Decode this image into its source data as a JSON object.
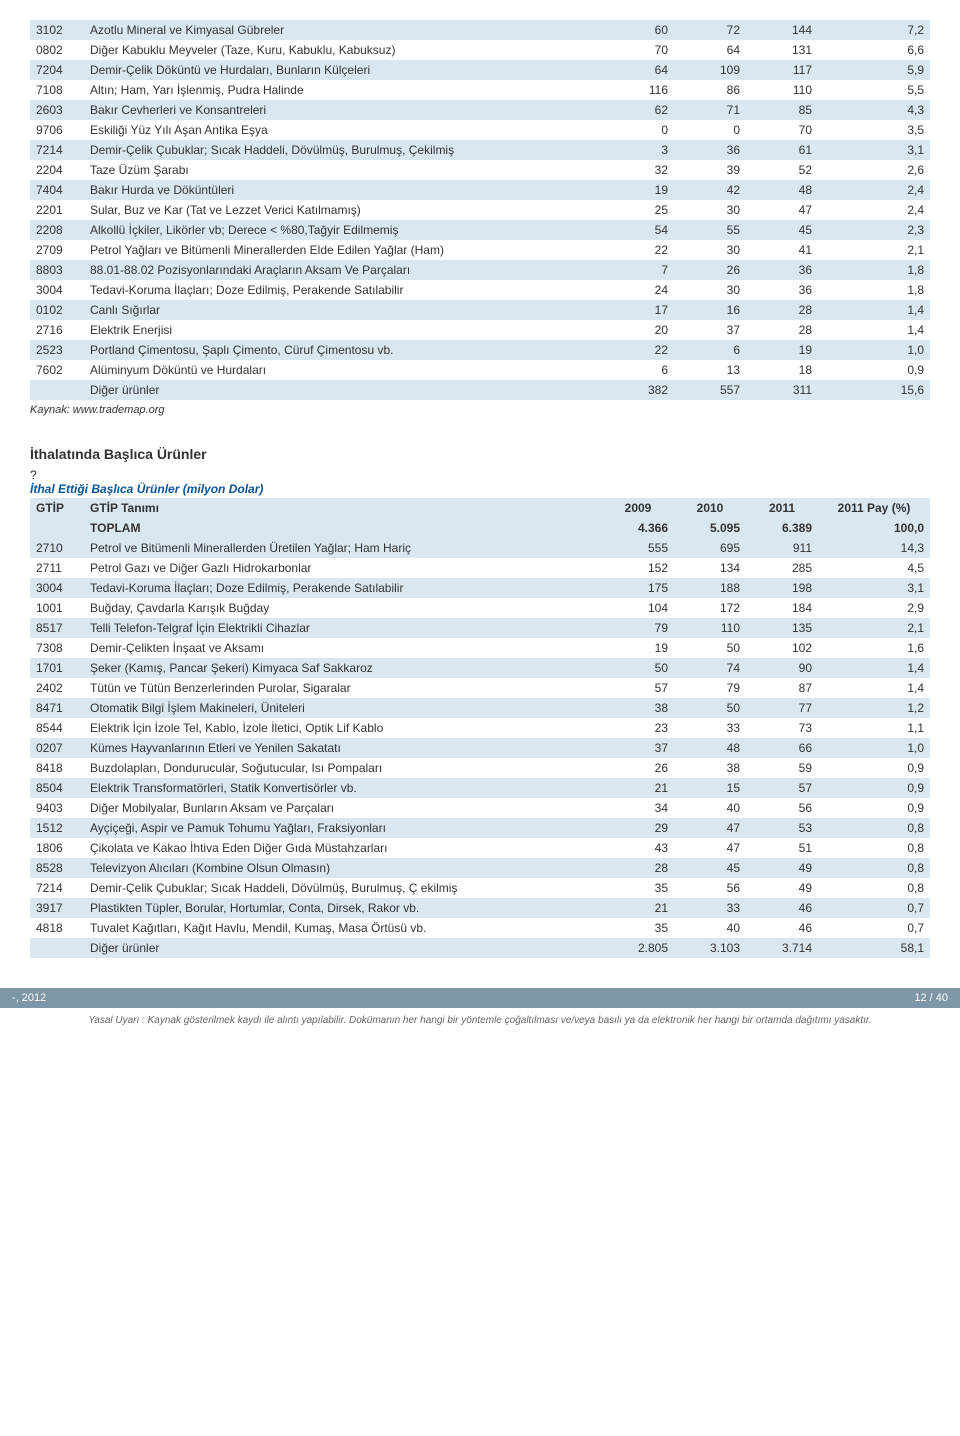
{
  "table1": {
    "rows": [
      {
        "code": "3102",
        "desc": "Azotlu Mineral ve Kimyasal Gübreler",
        "v1": "60",
        "v2": "72",
        "v3": "144",
        "v4": "7,2"
      },
      {
        "code": "0802",
        "desc": "Diğer Kabuklu Meyveler (Taze, Kuru, Kabuklu, Kabuksuz)",
        "v1": "70",
        "v2": "64",
        "v3": "131",
        "v4": "6,6"
      },
      {
        "code": "7204",
        "desc": "Demir-Çelik Döküntü ve Hurdaları, Bunların Külçeleri",
        "v1": "64",
        "v2": "109",
        "v3": "117",
        "v4": "5,9"
      },
      {
        "code": "7108",
        "desc": "Altın; Ham, Yarı İşlenmiş, Pudra Halinde",
        "v1": "116",
        "v2": "86",
        "v3": "110",
        "v4": "5,5"
      },
      {
        "code": "2603",
        "desc": "Bakır Cevherleri ve Konsantreleri",
        "v1": "62",
        "v2": "71",
        "v3": "85",
        "v4": "4,3"
      },
      {
        "code": "9706",
        "desc": "Eskiliği Yüz Yılı Aşan Antika Eşya",
        "v1": "0",
        "v2": "0",
        "v3": "70",
        "v4": "3,5"
      },
      {
        "code": "7214",
        "desc": "Demir-Çelik Çubuklar; Sıcak Haddeli, Dövülmüş, Burulmuş, Çekilmiş",
        "v1": "3",
        "v2": "36",
        "v3": "61",
        "v4": "3,1"
      },
      {
        "code": "2204",
        "desc": "Taze Üzüm Şarabı",
        "v1": "32",
        "v2": "39",
        "v3": "52",
        "v4": "2,6"
      },
      {
        "code": "7404",
        "desc": "Bakır Hurda ve Döküntüleri",
        "v1": "19",
        "v2": "42",
        "v3": "48",
        "v4": "2,4"
      },
      {
        "code": "2201",
        "desc": "Sular, Buz ve Kar (Tat ve Lezzet Verici Katılmamış)",
        "v1": "25",
        "v2": "30",
        "v3": "47",
        "v4": "2,4"
      },
      {
        "code": "2208",
        "desc": "Alkollü İçkiler, Likörler vb; Derece < %80,Tağyir Edilmemiş",
        "v1": "54",
        "v2": "55",
        "v3": "45",
        "v4": "2,3"
      },
      {
        "code": "2709",
        "desc": "Petrol Yağları ve Bitümenli Minerallerden Elde Edilen Yağlar (Ham)",
        "v1": "22",
        "v2": "30",
        "v3": "41",
        "v4": "2,1"
      },
      {
        "code": "8803",
        "desc": "88.01-88.02 Pozisyonlarındaki Araçların Aksam Ve Parçaları",
        "v1": "7",
        "v2": "26",
        "v3": "36",
        "v4": "1,8"
      },
      {
        "code": "3004",
        "desc": "Tedavi-Koruma İlaçları; Doze Edilmiş, Perakende Satılabilir",
        "v1": "24",
        "v2": "30",
        "v3": "36",
        "v4": "1,8"
      },
      {
        "code": "0102",
        "desc": "Canlı Sığırlar",
        "v1": "17",
        "v2": "16",
        "v3": "28",
        "v4": "1,4"
      },
      {
        "code": "2716",
        "desc": "Elektrik Enerjisi",
        "v1": "20",
        "v2": "37",
        "v3": "28",
        "v4": "1,4"
      },
      {
        "code": "2523",
        "desc": "Portland Çimentosu, Şaplı Çimento, Cüruf Çimentosu vb.",
        "v1": "22",
        "v2": "6",
        "v3": "19",
        "v4": "1,0"
      },
      {
        "code": "7602",
        "desc": "Alüminyum Döküntü ve Hurdaları",
        "v1": "6",
        "v2": "13",
        "v3": "18",
        "v4": "0,9"
      },
      {
        "code": "",
        "desc": "Diğer ürünler",
        "v1": "382",
        "v2": "557",
        "v3": "311",
        "v4": "15,6"
      }
    ],
    "source": "Kaynak: www.trademap.org"
  },
  "section": {
    "title": "İthalatında Başlıca Ürünler",
    "q": "?",
    "subtitle": "İthal Ettiği Başlıca Ürünler (milyon Dolar)"
  },
  "table2": {
    "header": {
      "c0": "GTİP",
      "c1": "GTİP Tanımı",
      "c2": "2009",
      "c3": "2010",
      "c4": "2011",
      "c5": "2011 Pay (%)"
    },
    "total": {
      "label": "TOPLAM",
      "v1": "4.366",
      "v2": "5.095",
      "v3": "6.389",
      "v4": "100,0"
    },
    "rows": [
      {
        "code": "2710",
        "desc": "Petrol ve Bitümenli Minerallerden Üretilen Yağlar; Ham Hariç",
        "v1": "555",
        "v2": "695",
        "v3": "911",
        "v4": "14,3"
      },
      {
        "code": "2711",
        "desc": "Petrol Gazı ve Diğer Gazlı Hidrokarbonlar",
        "v1": "152",
        "v2": "134",
        "v3": "285",
        "v4": "4,5"
      },
      {
        "code": "3004",
        "desc": "Tedavi-Koruma İlaçları; Doze Edilmiş, Perakende Satılabilir",
        "v1": "175",
        "v2": "188",
        "v3": "198",
        "v4": "3,1"
      },
      {
        "code": "1001",
        "desc": "Buğday, Çavdarla Karışık Buğday",
        "v1": "104",
        "v2": "172",
        "v3": "184",
        "v4": "2,9"
      },
      {
        "code": "8517",
        "desc": "Telli Telefon-Telgraf İçin Elektrikli Cihazlar",
        "v1": "79",
        "v2": "110",
        "v3": "135",
        "v4": "2,1"
      },
      {
        "code": "7308",
        "desc": "Demir-Çelikten İnşaat ve Aksamı",
        "v1": "19",
        "v2": "50",
        "v3": "102",
        "v4": "1,6"
      },
      {
        "code": "1701",
        "desc": "Şeker (Kamış, Pancar Şekeri) Kimyaca Saf Sakkaroz",
        "v1": "50",
        "v2": "74",
        "v3": "90",
        "v4": "1,4"
      },
      {
        "code": "2402",
        "desc": "Tütün ve Tütün Benzerlerinden Purolar, Sigaralar",
        "v1": "57",
        "v2": "79",
        "v3": "87",
        "v4": "1,4"
      },
      {
        "code": "8471",
        "desc": "Otomatik Bilgi İşlem Makineleri, Üniteleri",
        "v1": "38",
        "v2": "50",
        "v3": "77",
        "v4": "1,2"
      },
      {
        "code": "8544",
        "desc": "Elektrik İçin İzole Tel, Kablo, İzole İletici, Optik Lif Kablo",
        "v1": "23",
        "v2": "33",
        "v3": "73",
        "v4": "1,1"
      },
      {
        "code": "0207",
        "desc": "Kümes Hayvanlarının Etleri ve Yenilen Sakatatı",
        "v1": "37",
        "v2": "48",
        "v3": "66",
        "v4": "1,0"
      },
      {
        "code": "8418",
        "desc": "Buzdolapları, Dondurucular, Soğutucular, Isı Pompaları",
        "v1": "26",
        "v2": "38",
        "v3": "59",
        "v4": "0,9"
      },
      {
        "code": "8504",
        "desc": "Elektrik Transformatörleri, Statik Konvertisörler vb.",
        "v1": "21",
        "v2": "15",
        "v3": "57",
        "v4": "0,9"
      },
      {
        "code": "9403",
        "desc": "Diğer Mobilyalar, Bunların Aksam ve Parçaları",
        "v1": "34",
        "v2": "40",
        "v3": "56",
        "v4": "0,9"
      },
      {
        "code": "1512",
        "desc": "Ayçiçeği, Aspir ve Pamuk Tohumu Yağları, Fraksiyonları",
        "v1": "29",
        "v2": "47",
        "v3": "53",
        "v4": "0,8"
      },
      {
        "code": "1806",
        "desc": "Çikolata ve Kakao İhtiva Eden Diğer Gıda Müstahzarları",
        "v1": "43",
        "v2": "47",
        "v3": "51",
        "v4": "0,8"
      },
      {
        "code": "8528",
        "desc": "Televizyon Alıcıları (Kombine Olsun Olmasın)",
        "v1": "28",
        "v2": "45",
        "v3": "49",
        "v4": "0,8"
      },
      {
        "code": "7214",
        "desc": "Demir-Çelik Çubuklar; Sıcak Haddeli, Dövülmüş, Burulmuş, Ç ekilmiş",
        "v1": "35",
        "v2": "56",
        "v3": "49",
        "v4": "0,8"
      },
      {
        "code": "3917",
        "desc": "Plastikten Tüpler, Borular, Hortumlar, Conta, Dirsek, Rakor vb.",
        "v1": "21",
        "v2": "33",
        "v3": "46",
        "v4": "0,7"
      },
      {
        "code": "4818",
        "desc": "Tuvalet Kağıtları, Kağıt Havlu, Mendil, Kumaş, Masa Örtüsü vb.",
        "v1": "35",
        "v2": "40",
        "v3": "46",
        "v4": "0,7"
      },
      {
        "code": "",
        "desc": "Diğer ürünler",
        "v1": "2.805",
        "v2": "3.103",
        "v3": "3.714",
        "v4": "58,1"
      }
    ]
  },
  "footer": {
    "left": "-, 2012",
    "right": "12 / 40",
    "note": "Yasal Uyarı : Kaynak gösterilmek kaydı ile alıntı yapılabilir. Dokümanın her hangi bir yöntemle çoğaltılması ve/veya basılı ya da elektronik her hangi bir ortamda dağıtımı yasaktır."
  }
}
